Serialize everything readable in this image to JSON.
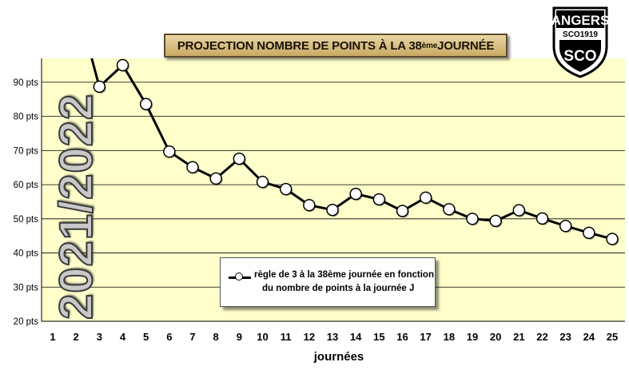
{
  "chart_data": {
    "type": "line",
    "title_main": "PROJECTION NOMBRE DE POINTS À LA 38",
    "title_sup": "ème",
    "title_end": " JOURNÉE",
    "xlabel": "journées",
    "ylabel": "",
    "ylim": [
      20,
      97
    ],
    "yticks": [
      20,
      30,
      40,
      50,
      60,
      70,
      80,
      90
    ],
    "ytick_suffix": " pts",
    "grid": true,
    "legend_position": "bottom-center",
    "x": [
      1,
      2,
      3,
      4,
      5,
      6,
      7,
      8,
      9,
      10,
      11,
      12,
      13,
      14,
      15,
      16,
      17,
      18,
      19,
      20,
      21,
      22,
      23,
      24,
      25
    ],
    "series": [
      {
        "name_line1": "règle de 3 à la 38ème journée en fonction",
        "name_line2": "du nombre de points à la journée J",
        "values": [
          null,
          114,
          88.7,
          95,
          83.6,
          69.7,
          65.1,
          61.8,
          67.6,
          60.8,
          58.7,
          54,
          52.6,
          57.3,
          55.7,
          52.3,
          56.2,
          52.8,
          50,
          49.4,
          52.5,
          50.1,
          47.9,
          45.9,
          44.1
        ],
        "color": "#000000"
      }
    ],
    "plot_background": "#ffffcc",
    "season_label": "2021/2022"
  },
  "logo": {
    "name": "ANGERS",
    "est": "SCO1919",
    "monogram": "SCO"
  }
}
